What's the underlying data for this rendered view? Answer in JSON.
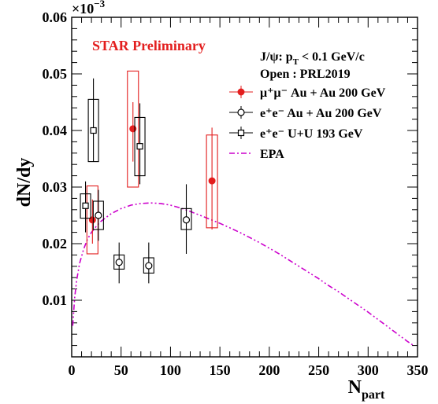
{
  "chart_data": {
    "type": "scatter",
    "xlabel": "N",
    "xlabel_sub": "part",
    "ylabel": "dN/dy",
    "y_multiplier": "×10",
    "y_multiplier_exp": "−3",
    "xlim": [
      0,
      350
    ],
    "ylim": [
      0,
      0.06
    ],
    "x_ticks": [
      0,
      50,
      100,
      150,
      200,
      250,
      300,
      350
    ],
    "x_tick_labels": [
      "0",
      "50",
      "100",
      "150",
      "200",
      "250",
      "300",
      "350"
    ],
    "y_ticks": [
      0.01,
      0.02,
      0.03,
      0.04,
      0.05,
      0.06
    ],
    "y_tick_labels": [
      "0.01",
      "0.02",
      "0.03",
      "0.04",
      "0.05",
      "0.06"
    ],
    "annotations": {
      "star": "STAR Preliminary",
      "line1": "J/ψ: p",
      "line1_sub": "T",
      "line1_rest": " < 0.1 GeV/c",
      "line2": "Open : PRL2019"
    },
    "legend": [
      {
        "label": "μ⁺μ⁻ Au + Au 200 GeV",
        "marker": "filled-circle",
        "color": "#e31e1e"
      },
      {
        "label": "e⁺e⁻ Au + Au 200 GeV",
        "marker": "open-circle",
        "color": "#000000"
      },
      {
        "label": "e⁺e⁻ U+U 193 GeV",
        "marker": "open-square",
        "color": "#000000"
      },
      {
        "label": "EPA",
        "marker": "dash-dot-line",
        "color": "#cc00cc"
      }
    ],
    "series": [
      {
        "name": "μ⁺μ⁻ Au + Au 200 GeV",
        "color": "#e31e1e",
        "points": [
          {
            "x": 21,
            "y": 0.0242,
            "stat": [
              0.02,
              0.0278
            ],
            "sys": [
              0.0182,
              0.0302
            ]
          },
          {
            "x": 62,
            "y": 0.0403,
            "stat": [
              0.0345,
              0.045
            ],
            "sys": [
              0.03,
              0.0505
            ]
          },
          {
            "x": 142,
            "y": 0.0311,
            "stat": [
              0.0225,
              0.0405
            ],
            "sys": [
              0.0228,
              0.0392
            ]
          }
        ]
      },
      {
        "name": "e⁺e⁻ Au + Au 200 GeV",
        "color": "#000000",
        "points": [
          {
            "x": 27,
            "y": 0.025,
            "stat": [
              0.0205,
              0.0295
            ],
            "sys": [
              0.0225,
              0.0275
            ]
          },
          {
            "x": 48,
            "y": 0.0167,
            "stat": [
              0.013,
              0.0202
            ],
            "sys": [
              0.0155,
              0.018
            ]
          },
          {
            "x": 78,
            "y": 0.0161,
            "stat": [
              0.013,
              0.0202
            ],
            "sys": [
              0.0148,
              0.0175
            ]
          },
          {
            "x": 116,
            "y": 0.0242,
            "stat": [
              0.0182,
              0.0305
            ],
            "sys": [
              0.0225,
              0.0262
            ]
          }
        ]
      },
      {
        "name": "e⁺e⁻ U+U 193 GeV",
        "color": "#000000",
        "points": [
          {
            "x": 14,
            "y": 0.0267,
            "stat": [
              0.022,
              0.031
            ],
            "sys": [
              0.0245,
              0.0288
            ]
          },
          {
            "x": 22,
            "y": 0.04,
            "stat": [
              0.0345,
              0.0492
            ],
            "sys": [
              0.0345,
              0.0455
            ]
          },
          {
            "x": 69,
            "y": 0.0372,
            "stat": [
              0.0305,
              0.0448
            ],
            "sys": [
              0.032,
              0.0423
            ]
          }
        ]
      }
    ],
    "curve": {
      "name": "EPA",
      "color": "#cc00cc",
      "x": [
        1,
        3,
        5,
        8,
        12,
        16,
        20,
        25,
        30,
        40,
        50,
        60,
        70,
        80,
        90,
        100,
        110,
        120,
        130,
        140,
        150,
        160,
        170,
        180,
        190,
        200,
        210,
        220,
        230,
        240,
        250,
        260,
        270,
        280,
        290,
        300,
        310,
        320,
        330,
        340,
        346
      ],
      "y": [
        0.0055,
        0.0105,
        0.0135,
        0.0165,
        0.019,
        0.0208,
        0.022,
        0.0231,
        0.024,
        0.0253,
        0.0262,
        0.0268,
        0.0271,
        0.0272,
        0.0271,
        0.0268,
        0.0263,
        0.0257,
        0.025,
        0.0243,
        0.0236,
        0.0228,
        0.022,
        0.0211,
        0.0202,
        0.0192,
        0.0182,
        0.0171,
        0.016,
        0.0149,
        0.0138,
        0.0126,
        0.0115,
        0.0103,
        0.0091,
        0.0079,
        0.0066,
        0.0053,
        0.004,
        0.0027,
        0.002
      ]
    }
  }
}
